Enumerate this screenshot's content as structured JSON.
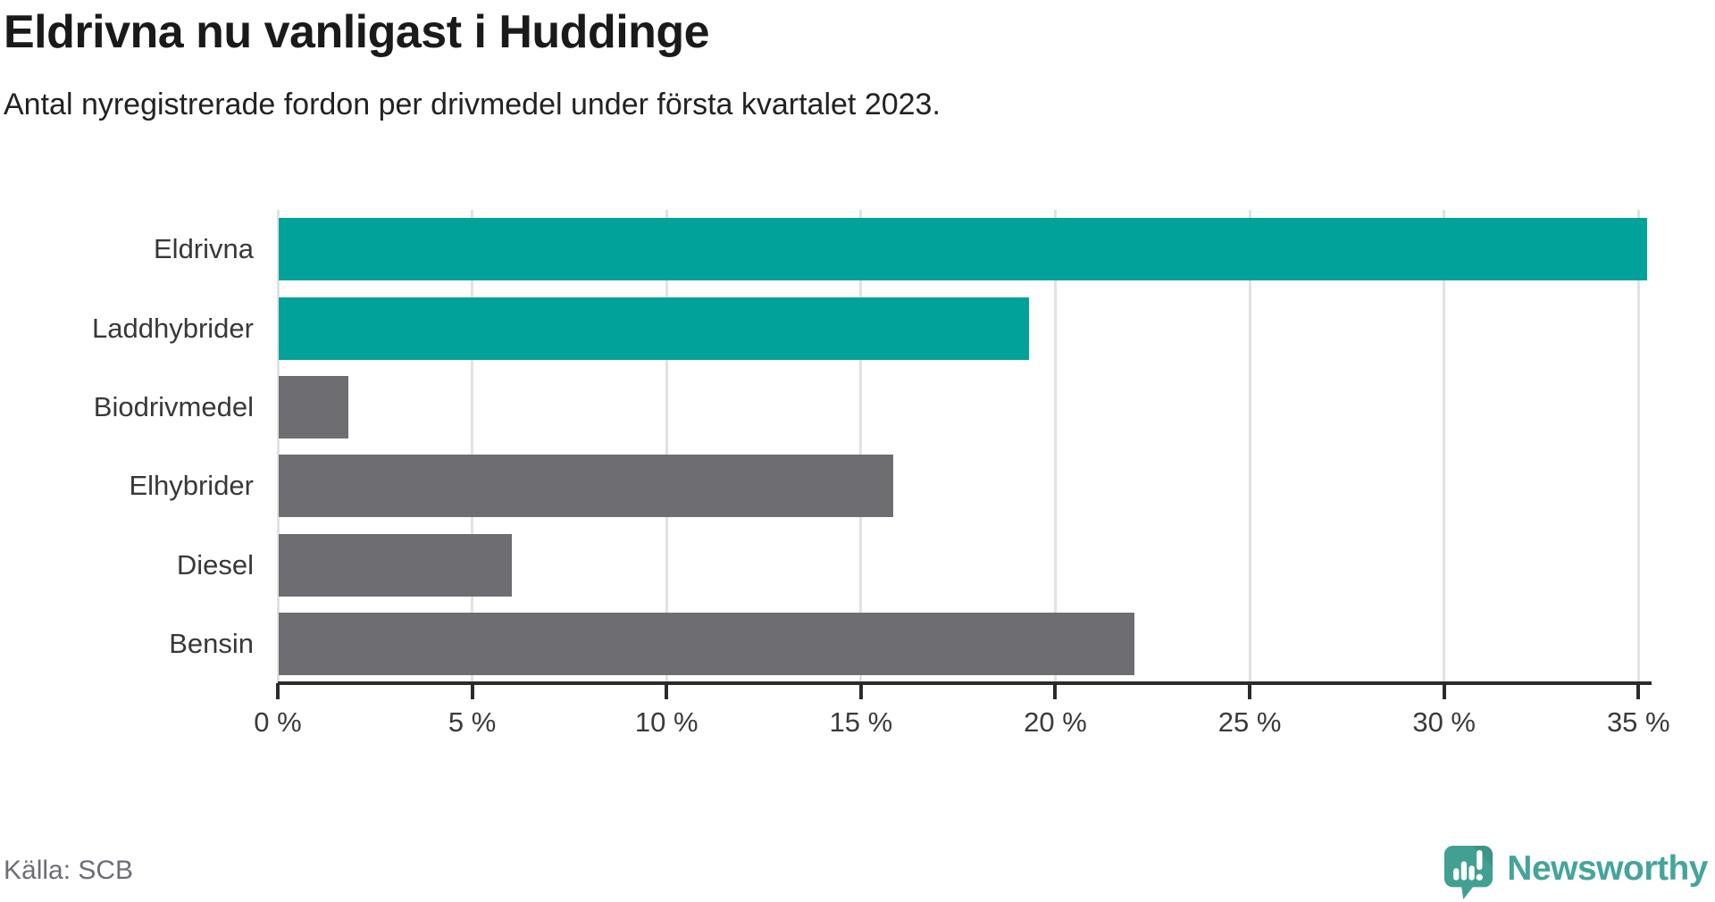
{
  "title": "Eldrivna nu vanligast i Huddinge",
  "subtitle": "Antal nyregistrerade fordon per drivmedel under första kvartalet 2023.",
  "source": "Källa: SCB",
  "brand": {
    "name": "Newsworthy"
  },
  "colors": {
    "accent_teal": "#00a29a",
    "muted_gray": "#6d6d72",
    "grid": "#e2e2e2",
    "axis": "#2b2b2b",
    "logo_teal": "#41a092",
    "logo_text": "#45a49b"
  },
  "chart_data": {
    "type": "bar",
    "orientation": "horizontal",
    "title": "Eldrivna nu vanligast i Huddinge",
    "subtitle": "Antal nyregistrerade fordon per drivmedel under första kvartalet 2023.",
    "categories": [
      "Eldrivna",
      "Laddhybrider",
      "Biodrivmedel",
      "Elhybrider",
      "Diesel",
      "Bensin"
    ],
    "values": [
      35.2,
      19.3,
      1.8,
      15.8,
      6.0,
      22.0
    ],
    "bar_colors": [
      "#00a29a",
      "#00a29a",
      "#6d6d72",
      "#6d6d72",
      "#6d6d72",
      "#6d6d72"
    ],
    "xlabel": "",
    "ylabel": "",
    "xlim": [
      0,
      35.2
    ],
    "xticks": [
      0,
      5,
      10,
      15,
      20,
      25,
      30,
      35
    ],
    "xtick_labels": [
      "0 %",
      "5 %",
      "10 %",
      "15 %",
      "20 %",
      "25 %",
      "30 %",
      "35 %"
    ],
    "grid": true,
    "legend": false,
    "source_note": "Källa: SCB"
  }
}
